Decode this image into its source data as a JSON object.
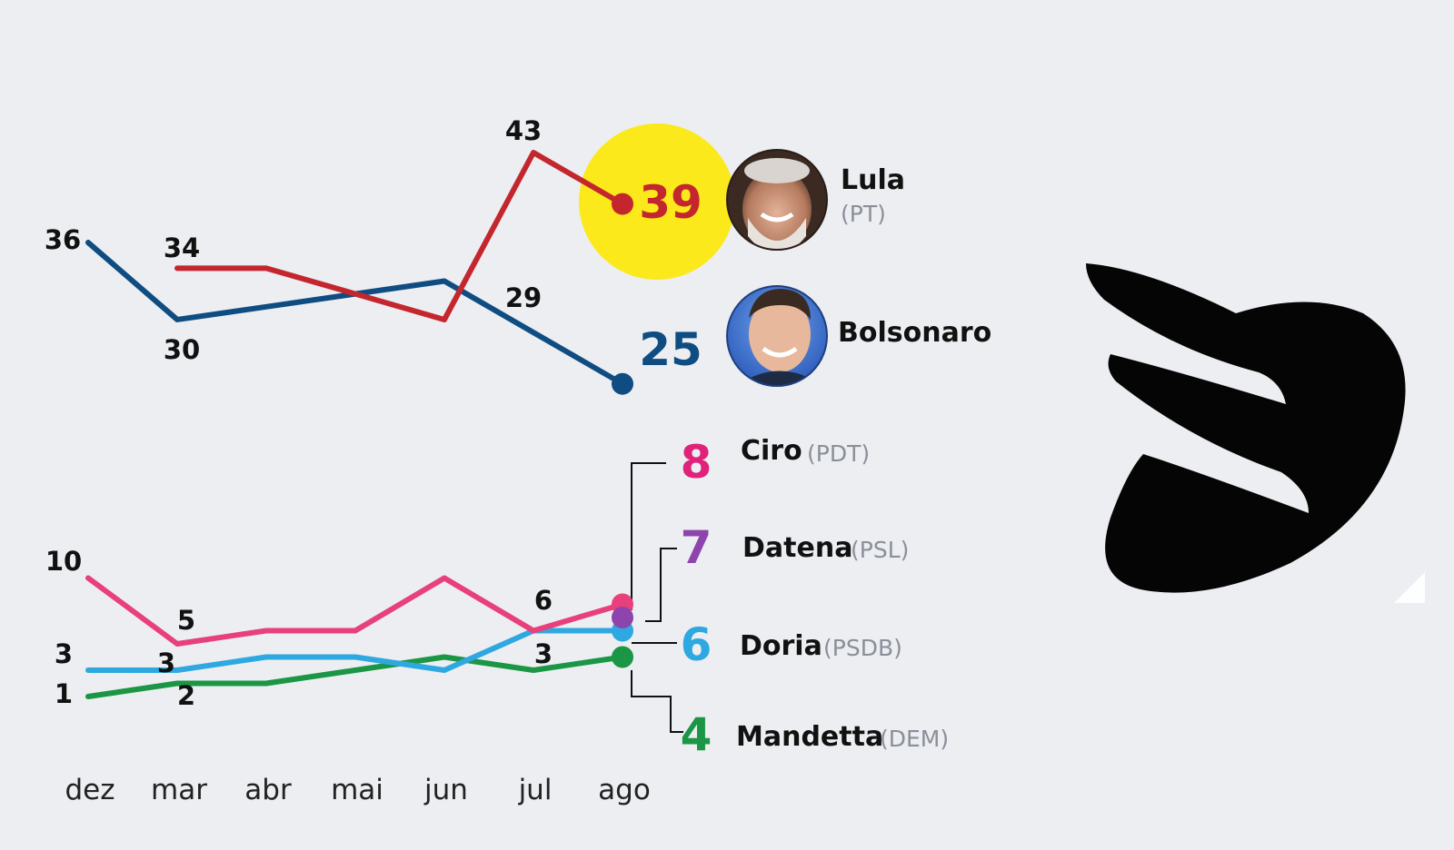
{
  "chart_data": {
    "type": "line",
    "title": "",
    "xlabel": "",
    "ylabel": "",
    "x": [
      "dez",
      "mar",
      "abr",
      "mai",
      "jun",
      "jul",
      "ago"
    ],
    "series": [
      {
        "name": "Lula",
        "party": "(PT)",
        "color": "#c4262e",
        "values": [
          null,
          34,
          34,
          32,
          30,
          43,
          39
        ],
        "point_labels": [
          "",
          "34",
          "",
          "",
          "",
          "43",
          ""
        ],
        "final_label": "39"
      },
      {
        "name": "Bolsonaro",
        "party": "",
        "color": "#0f4c81",
        "values": [
          36,
          30,
          31,
          32,
          33,
          29,
          25
        ],
        "point_labels": [
          "36",
          "30",
          "",
          "",
          "",
          "29",
          ""
        ],
        "final_label": "25"
      },
      {
        "name": "Ciro",
        "party": "(PDT)",
        "color": "#e8407c",
        "values": [
          10,
          5,
          6,
          6,
          10,
          6,
          8
        ],
        "point_labels": [
          "10",
          "5",
          "",
          "",
          "",
          "6",
          ""
        ],
        "final_label": "8",
        "final_color": "#e0227a"
      },
      {
        "name": "Datena",
        "party": "(PSL)",
        "color": "#8e44ad",
        "values": [
          null,
          null,
          null,
          null,
          null,
          null,
          7
        ],
        "point_labels": [
          "",
          "",
          "",
          "",
          "",
          "",
          ""
        ],
        "final_label": "7"
      },
      {
        "name": "Doria",
        "party": "(PSDB)",
        "color": "#2ea8e0",
        "values": [
          3,
          3,
          4,
          4,
          3,
          6,
          6
        ],
        "point_labels": [
          "3",
          "3",
          "",
          "",
          "",
          "",
          ""
        ],
        "final_label": "6"
      },
      {
        "name": "Mandetta",
        "party": "(DEM)",
        "color": "#1a9645",
        "values": [
          1,
          2,
          2,
          3,
          4,
          3,
          4
        ],
        "point_labels": [
          "1",
          "2",
          "",
          "",
          "",
          "3",
          ""
        ],
        "final_label": "4"
      }
    ],
    "highlight_color": "#fbe91b",
    "connector_color": "#111111",
    "legend": "right",
    "grid": false
  },
  "icons": {
    "lula_photo": "lula-avatar",
    "bolsonaro_photo": "bolsonaro-avatar",
    "brand_logo": "wing-logo"
  }
}
